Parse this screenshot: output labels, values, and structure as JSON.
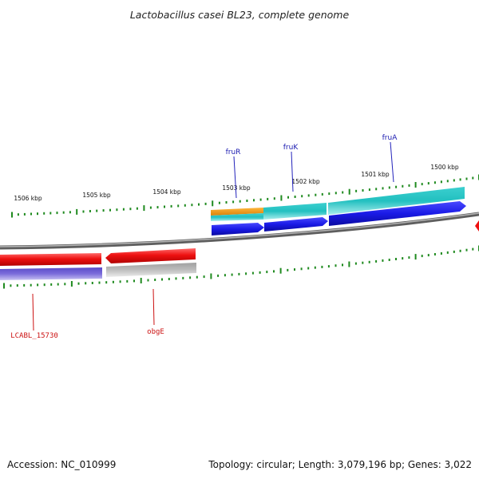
{
  "title": "Lactobacillus casei BL23, complete genome",
  "footer": {
    "accession": "Accession: NC_010999",
    "topology": "Topology: circular; Length: 3,079,196 bp; Genes: 3,022"
  },
  "scale_labels": [
    "1506 kbp",
    "1505 kbp",
    "1504 kbp",
    "1503 kbp",
    "1502 kbp",
    "1501 kbp",
    "1500 kbp"
  ],
  "gene_labels_top": [
    "fruR",
    "fruK",
    "fruA"
  ],
  "gene_labels_bottom": [
    "LCABL_15730",
    "obgE"
  ],
  "colors": {
    "backbone": "#7a7a7a",
    "ticks": "#1f8a1f",
    "orange": "#f39c12",
    "cyan": "#20c4c4",
    "blue": "#1a1ae6",
    "red": "#ee1111",
    "purple": "#6a5acd",
    "gray": "#b8b8b8",
    "label_top": "#1a1ab0",
    "label_bottom": "#cc1111"
  }
}
